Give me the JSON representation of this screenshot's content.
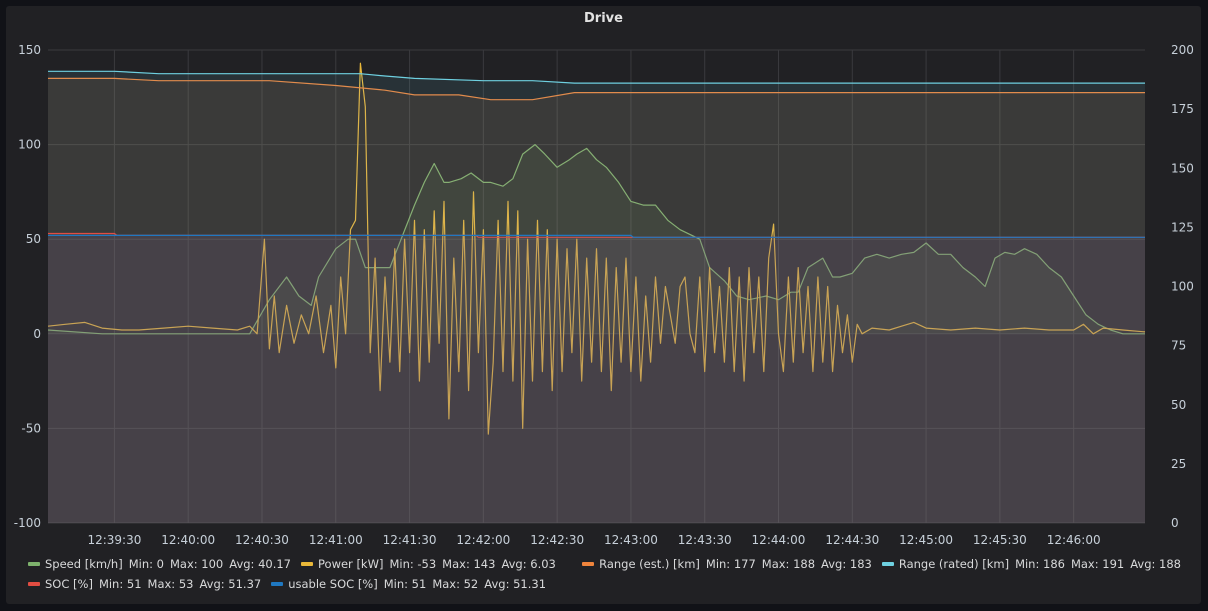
{
  "panel": {
    "title": "Drive"
  },
  "chart_data": {
    "type": "line",
    "title": "Drive",
    "x_ticks": [
      "12:39:30",
      "12:40:00",
      "12:40:30",
      "12:41:00",
      "12:41:30",
      "12:42:00",
      "12:42:30",
      "12:43:00",
      "12:43:30",
      "12:44:00",
      "12:44:30",
      "12:45:00",
      "12:45:30",
      "12:46:00"
    ],
    "x_range": [
      "12:39:03",
      "12:46:29"
    ],
    "left_axis": {
      "ticks": [
        "150",
        "100",
        "50",
        "0",
        "-50",
        "-100"
      ],
      "ylim": [
        -100,
        150
      ]
    },
    "right_axis": {
      "ticks": [
        "200",
        "175",
        "150",
        "125",
        "100",
        "75",
        "50",
        "25",
        "0"
      ],
      "ylim": [
        0,
        200
      ]
    },
    "grid": true,
    "legend_position": "bottom",
    "series": [
      {
        "name": "Speed [km/h]",
        "axis": "left",
        "color": "#7eb26d",
        "fill": true,
        "stats": {
          "min": "Min: 0",
          "max": "Max: 100",
          "avg": "Avg: 40.17"
        },
        "points": [
          [
            "12:39:03",
            2
          ],
          [
            "12:39:25",
            0
          ],
          [
            "12:39:48",
            0
          ],
          [
            "12:40:10",
            0
          ],
          [
            "12:40:25",
            0
          ],
          [
            "12:40:33",
            18
          ],
          [
            "12:40:40",
            30
          ],
          [
            "12:40:45",
            20
          ],
          [
            "12:40:50",
            15
          ],
          [
            "12:40:53",
            30
          ],
          [
            "12:41:00",
            45
          ],
          [
            "12:41:05",
            50
          ],
          [
            "12:41:08",
            50
          ],
          [
            "12:41:12",
            35
          ],
          [
            "12:41:17",
            35
          ],
          [
            "12:41:22",
            35
          ],
          [
            "12:41:32",
            68
          ],
          [
            "12:41:36",
            80
          ],
          [
            "12:41:40",
            90
          ],
          [
            "12:41:44",
            80
          ],
          [
            "12:41:46",
            80
          ],
          [
            "12:41:51",
            82
          ],
          [
            "12:41:55",
            85
          ],
          [
            "12:42:00",
            80
          ],
          [
            "12:42:03",
            80
          ],
          [
            "12:42:08",
            78
          ],
          [
            "12:42:12",
            82
          ],
          [
            "12:42:16",
            95
          ],
          [
            "12:42:21",
            100
          ],
          [
            "12:42:25",
            95
          ],
          [
            "12:42:30",
            88
          ],
          [
            "12:42:35",
            92
          ],
          [
            "12:42:38",
            95
          ],
          [
            "12:42:42",
            98
          ],
          [
            "12:42:46",
            92
          ],
          [
            "12:42:50",
            88
          ],
          [
            "12:42:55",
            80
          ],
          [
            "12:43:00",
            70
          ],
          [
            "12:43:05",
            68
          ],
          [
            "12:43:10",
            68
          ],
          [
            "12:43:15",
            60
          ],
          [
            "12:43:20",
            55
          ],
          [
            "12:43:28",
            50
          ],
          [
            "12:43:32",
            35
          ],
          [
            "12:43:38",
            28
          ],
          [
            "12:43:43",
            20
          ],
          [
            "12:43:48",
            18
          ],
          [
            "12:43:55",
            20
          ],
          [
            "12:44:00",
            18
          ],
          [
            "12:44:05",
            22
          ],
          [
            "12:44:08",
            22
          ],
          [
            "12:44:12",
            35
          ],
          [
            "12:44:18",
            40
          ],
          [
            "12:44:22",
            30
          ],
          [
            "12:44:25",
            30
          ],
          [
            "12:44:30",
            32
          ],
          [
            "12:44:35",
            40
          ],
          [
            "12:44:40",
            42
          ],
          [
            "12:44:45",
            40
          ],
          [
            "12:44:50",
            42
          ],
          [
            "12:44:55",
            43
          ],
          [
            "12:45:00",
            48
          ],
          [
            "12:45:05",
            42
          ],
          [
            "12:45:10",
            42
          ],
          [
            "12:45:15",
            35
          ],
          [
            "12:45:20",
            30
          ],
          [
            "12:45:24",
            25
          ],
          [
            "12:45:28",
            40
          ],
          [
            "12:45:32",
            43
          ],
          [
            "12:45:36",
            42
          ],
          [
            "12:45:40",
            45
          ],
          [
            "12:45:45",
            42
          ],
          [
            "12:45:50",
            35
          ],
          [
            "12:45:55",
            30
          ],
          [
            "12:46:00",
            20
          ],
          [
            "12:46:05",
            10
          ],
          [
            "12:46:10",
            5
          ],
          [
            "12:46:15",
            2
          ],
          [
            "12:46:20",
            0
          ],
          [
            "12:46:29",
            0
          ]
        ]
      },
      {
        "name": "Power [kW]",
        "axis": "left",
        "color": "#eab839",
        "fill": false,
        "stats": {
          "min": "Min: -53",
          "max": "Max: 143",
          "avg": "Avg: 6.03"
        },
        "points": [
          [
            "12:39:03",
            4
          ],
          [
            "12:39:10",
            5
          ],
          [
            "12:39:18",
            6
          ],
          [
            "12:39:25",
            3
          ],
          [
            "12:39:33",
            2
          ],
          [
            "12:39:40",
            2
          ],
          [
            "12:39:50",
            3
          ],
          [
            "12:40:00",
            4
          ],
          [
            "12:40:10",
            3
          ],
          [
            "12:40:20",
            2
          ],
          [
            "12:40:25",
            4
          ],
          [
            "12:40:28",
            0
          ],
          [
            "12:40:31",
            50
          ],
          [
            "12:40:33",
            -8
          ],
          [
            "12:40:35",
            20
          ],
          [
            "12:40:37",
            -10
          ],
          [
            "12:40:40",
            15
          ],
          [
            "12:40:43",
            -5
          ],
          [
            "12:40:46",
            10
          ],
          [
            "12:40:49",
            0
          ],
          [
            "12:40:52",
            20
          ],
          [
            "12:40:55",
            -10
          ],
          [
            "12:40:58",
            15
          ],
          [
            "12:41:00",
            -18
          ],
          [
            "12:41:02",
            30
          ],
          [
            "12:41:04",
            0
          ],
          [
            "12:41:06",
            55
          ],
          [
            "12:41:08",
            60
          ],
          [
            "12:41:10",
            143
          ],
          [
            "12:41:12",
            120
          ],
          [
            "12:41:14",
            -10
          ],
          [
            "12:41:16",
            40
          ],
          [
            "12:41:18",
            -30
          ],
          [
            "12:41:20",
            30
          ],
          [
            "12:41:22",
            -15
          ],
          [
            "12:41:24",
            45
          ],
          [
            "12:41:26",
            -20
          ],
          [
            "12:41:28",
            50
          ],
          [
            "12:41:30",
            -10
          ],
          [
            "12:41:32",
            60
          ],
          [
            "12:41:34",
            -25
          ],
          [
            "12:41:36",
            55
          ],
          [
            "12:41:38",
            -15
          ],
          [
            "12:41:40",
            65
          ],
          [
            "12:41:42",
            -5
          ],
          [
            "12:41:44",
            70
          ],
          [
            "12:41:46",
            -45
          ],
          [
            "12:41:48",
            40
          ],
          [
            "12:41:50",
            -20
          ],
          [
            "12:41:52",
            60
          ],
          [
            "12:41:54",
            -30
          ],
          [
            "12:41:56",
            75
          ],
          [
            "12:41:58",
            -10
          ],
          [
            "12:42:00",
            55
          ],
          [
            "12:42:02",
            -53
          ],
          [
            "12:42:04",
            -15
          ],
          [
            "12:42:06",
            60
          ],
          [
            "12:42:08",
            -20
          ],
          [
            "12:42:10",
            70
          ],
          [
            "12:42:12",
            -25
          ],
          [
            "12:42:14",
            65
          ],
          [
            "12:42:16",
            -50
          ],
          [
            "12:42:18",
            50
          ],
          [
            "12:42:20",
            -25
          ],
          [
            "12:42:22",
            60
          ],
          [
            "12:42:24",
            -20
          ],
          [
            "12:42:26",
            55
          ],
          [
            "12:42:28",
            -30
          ],
          [
            "12:42:30",
            50
          ],
          [
            "12:42:32",
            -20
          ],
          [
            "12:42:34",
            45
          ],
          [
            "12:42:36",
            -10
          ],
          [
            "12:42:38",
            50
          ],
          [
            "12:42:40",
            -25
          ],
          [
            "12:42:42",
            40
          ],
          [
            "12:42:44",
            -15
          ],
          [
            "12:42:46",
            45
          ],
          [
            "12:42:48",
            -20
          ],
          [
            "12:42:50",
            40
          ],
          [
            "12:42:52",
            -30
          ],
          [
            "12:42:54",
            35
          ],
          [
            "12:42:56",
            -15
          ],
          [
            "12:42:58",
            40
          ],
          [
            "12:43:00",
            -20
          ],
          [
            "12:43:02",
            30
          ],
          [
            "12:43:04",
            -25
          ],
          [
            "12:43:06",
            20
          ],
          [
            "12:43:08",
            -15
          ],
          [
            "12:43:10",
            30
          ],
          [
            "12:43:12",
            -5
          ],
          [
            "12:43:14",
            25
          ],
          [
            "12:43:16",
            10
          ],
          [
            "12:43:18",
            -5
          ],
          [
            "12:43:20",
            25
          ],
          [
            "12:43:22",
            30
          ],
          [
            "12:43:24",
            0
          ],
          [
            "12:43:26",
            -10
          ],
          [
            "12:43:28",
            30
          ],
          [
            "12:43:30",
            -20
          ],
          [
            "12:43:32",
            35
          ],
          [
            "12:43:34",
            -10
          ],
          [
            "12:43:36",
            25
          ],
          [
            "12:43:38",
            -15
          ],
          [
            "12:43:40",
            35
          ],
          [
            "12:43:42",
            -20
          ],
          [
            "12:43:44",
            30
          ],
          [
            "12:43:46",
            -25
          ],
          [
            "12:43:48",
            35
          ],
          [
            "12:43:50",
            -10
          ],
          [
            "12:43:52",
            30
          ],
          [
            "12:43:54",
            -20
          ],
          [
            "12:43:56",
            40
          ],
          [
            "12:43:58",
            58
          ],
          [
            "12:44:00",
            0
          ],
          [
            "12:44:02",
            -20
          ],
          [
            "12:44:04",
            30
          ],
          [
            "12:44:06",
            -15
          ],
          [
            "12:44:08",
            35
          ],
          [
            "12:44:10",
            -10
          ],
          [
            "12:44:12",
            25
          ],
          [
            "12:44:14",
            -20
          ],
          [
            "12:44:16",
            30
          ],
          [
            "12:44:18",
            -15
          ],
          [
            "12:44:20",
            25
          ],
          [
            "12:44:22",
            -20
          ],
          [
            "12:44:24",
            15
          ],
          [
            "12:44:26",
            -10
          ],
          [
            "12:44:28",
            10
          ],
          [
            "12:44:30",
            -15
          ],
          [
            "12:44:32",
            5
          ],
          [
            "12:44:34",
            0
          ],
          [
            "12:44:38",
            3
          ],
          [
            "12:44:45",
            2
          ],
          [
            "12:44:50",
            4
          ],
          [
            "12:44:55",
            6
          ],
          [
            "12:45:00",
            3
          ],
          [
            "12:45:10",
            2
          ],
          [
            "12:45:20",
            3
          ],
          [
            "12:45:30",
            2
          ],
          [
            "12:45:40",
            3
          ],
          [
            "12:45:50",
            2
          ],
          [
            "12:46:00",
            2
          ],
          [
            "12:46:04",
            5
          ],
          [
            "12:46:08",
            0
          ],
          [
            "12:46:12",
            3
          ],
          [
            "12:46:20",
            2
          ],
          [
            "12:46:29",
            1
          ]
        ]
      },
      {
        "name": "Range (est.) [km]",
        "axis": "right",
        "color": "#ef843c",
        "fill": true,
        "stats": {
          "min": "Min: 177",
          "max": "Max: 188",
          "avg": "Avg: 183"
        },
        "points": [
          [
            "12:39:03",
            188
          ],
          [
            "12:39:30",
            188
          ],
          [
            "12:39:48",
            187
          ],
          [
            "12:40:33",
            187
          ],
          [
            "12:41:00",
            185
          ],
          [
            "12:41:20",
            183
          ],
          [
            "12:41:32",
            181
          ],
          [
            "12:41:50",
            181
          ],
          [
            "12:42:03",
            179
          ],
          [
            "12:42:20",
            179
          ],
          [
            "12:42:37",
            182
          ],
          [
            "12:46:29",
            182
          ]
        ]
      },
      {
        "name": "Range (rated) [km]",
        "axis": "right",
        "color": "#6ed0e0",
        "fill": true,
        "stats": {
          "min": "Min: 186",
          "max": "Max: 191",
          "avg": "Avg: 188"
        },
        "points": [
          [
            "12:39:03",
            191
          ],
          [
            "12:39:30",
            191
          ],
          [
            "12:39:48",
            190
          ],
          [
            "12:40:33",
            190
          ],
          [
            "12:41:10",
            190
          ],
          [
            "12:41:20",
            189
          ],
          [
            "12:41:32",
            188
          ],
          [
            "12:42:00",
            187
          ],
          [
            "12:42:20",
            187
          ],
          [
            "12:42:37",
            186
          ],
          [
            "12:46:29",
            186
          ]
        ]
      },
      {
        "name": "SOC [%]",
        "axis": "left",
        "color": "#e24d42",
        "fill": true,
        "stats": {
          "min": "Min: 51",
          "max": "Max: 53",
          "avg": "Avg: 51.37"
        },
        "points": [
          [
            "12:39:03",
            53
          ],
          [
            "12:39:30",
            53
          ],
          [
            "12:39:31",
            52
          ],
          [
            "12:41:57",
            52
          ],
          [
            "12:41:58",
            51
          ],
          [
            "12:46:29",
            51
          ]
        ]
      },
      {
        "name": "usable SOC [%]",
        "axis": "left",
        "color": "#1f78c1",
        "fill": true,
        "stats": {
          "min": "Min: 51",
          "max": "Max: 52",
          "avg": "Avg: 51.31"
        },
        "points": [
          [
            "12:39:03",
            52
          ],
          [
            "12:43:00",
            52
          ],
          [
            "12:43:01",
            51
          ],
          [
            "12:46:29",
            51
          ]
        ]
      }
    ]
  }
}
